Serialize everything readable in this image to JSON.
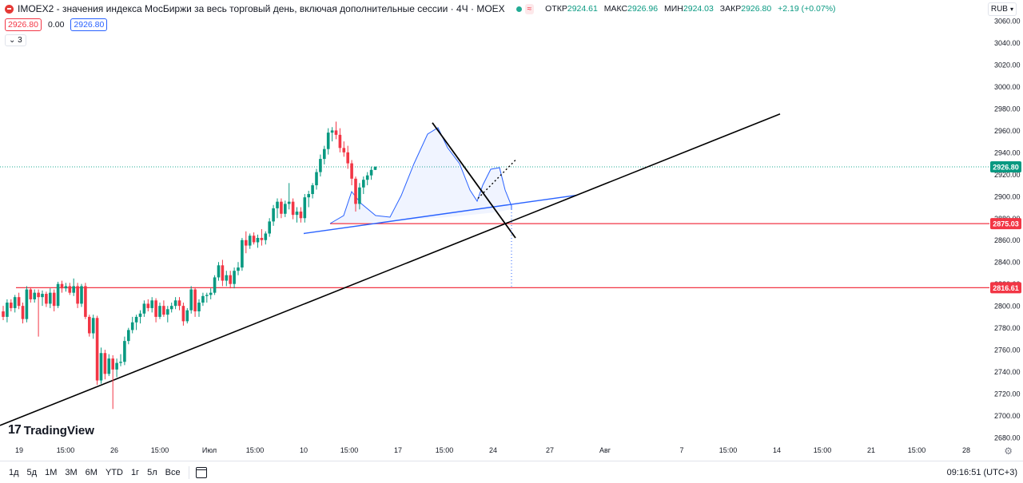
{
  "legend": {
    "title": "IMOEX2 - значения индекса МосБиржи за весь торговый день, включая дополнительные сессии · 4Ч · MOEX",
    "open_label": "ОТКР",
    "open": "2924.61",
    "high_label": "МАКС",
    "high": "2926.96",
    "low_label": "МИН",
    "low": "2924.03",
    "close_label": "ЗАКР",
    "close": "2926.80",
    "change": "+2.19 (+0.07%)",
    "status_mark": "≈"
  },
  "price_row": {
    "sell": "2926.80",
    "spread": "0.00",
    "buy": "2926.80"
  },
  "indicators_toggle": "3",
  "currency": "RUB",
  "brand": "TradingView",
  "bottom": {
    "ranges": [
      "1д",
      "5д",
      "1М",
      "3М",
      "6М",
      "YTD",
      "1г",
      "5л",
      "Все"
    ],
    "clock": "09:16:51 (UTC+3)"
  },
  "colors": {
    "up": "#089981",
    "down": "#f23645",
    "level": "#f23645",
    "trend": "#000000",
    "pattern": "#2962ff"
  },
  "chart_data": {
    "type": "candlestick",
    "y_ticks": [
      2680,
      2700,
      2720,
      2740,
      2760,
      2780,
      2800,
      2820,
      2840,
      2860,
      2880,
      2900,
      2920,
      2940,
      2960,
      2980,
      3000,
      3020,
      3040,
      3060
    ],
    "ylim": [
      2674,
      3065
    ],
    "x_ticks": [
      "19",
      "15:00",
      "26",
      "15:00",
      "Июл",
      "15:00",
      "10",
      "15:00",
      "17",
      "15:00",
      "24",
      "27",
      "Авг",
      "7",
      "15:00",
      "14",
      "15:00",
      "21",
      "15:00",
      "28"
    ],
    "last_price": 2926.8,
    "horizontal_levels": [
      2875.03,
      2816.61
    ],
    "candles_ohlc": [
      [
        2795,
        2800,
        2787,
        2790
      ],
      [
        2790,
        2806,
        2785,
        2803
      ],
      [
        2803,
        2806,
        2795,
        2798
      ],
      [
        2798,
        2810,
        2794,
        2808
      ],
      [
        2808,
        2812,
        2797,
        2800
      ],
      [
        2800,
        2803,
        2784,
        2788
      ],
      [
        2788,
        2818,
        2785,
        2815
      ],
      [
        2815,
        2817,
        2803,
        2806
      ],
      [
        2806,
        2815,
        2803,
        2812
      ],
      [
        2812,
        2815,
        2772,
        2808
      ],
      [
        2808,
        2814,
        2800,
        2811
      ],
      [
        2811,
        2813,
        2799,
        2802
      ],
      [
        2802,
        2816,
        2798,
        2812
      ],
      [
        2812,
        2815,
        2795,
        2800
      ],
      [
        2800,
        2822,
        2798,
        2820
      ],
      [
        2820,
        2823,
        2812,
        2816
      ],
      [
        2816,
        2821,
        2813,
        2818
      ],
      [
        2818,
        2821,
        2810,
        2812
      ],
      [
        2812,
        2825,
        2809,
        2818
      ],
      [
        2818,
        2821,
        2798,
        2802
      ],
      [
        2802,
        2820,
        2799,
        2818
      ],
      [
        2818,
        2821,
        2788,
        2790
      ],
      [
        2790,
        2792,
        2772,
        2775
      ],
      [
        2775,
        2792,
        2770,
        2789
      ],
      [
        2789,
        2791,
        2728,
        2732
      ],
      [
        2732,
        2762,
        2729,
        2757
      ],
      [
        2757,
        2760,
        2733,
        2738
      ],
      [
        2738,
        2756,
        2736,
        2752
      ],
      [
        2752,
        2755,
        2706,
        2742
      ],
      [
        2742,
        2752,
        2735,
        2748
      ],
      [
        2748,
        2756,
        2745,
        2749
      ],
      [
        2749,
        2772,
        2746,
        2768
      ],
      [
        2768,
        2780,
        2765,
        2778
      ],
      [
        2778,
        2790,
        2775,
        2785
      ],
      [
        2785,
        2792,
        2778,
        2790
      ],
      [
        2790,
        2796,
        2784,
        2793
      ],
      [
        2793,
        2805,
        2790,
        2802
      ],
      [
        2802,
        2806,
        2795,
        2798
      ],
      [
        2798,
        2808,
        2794,
        2805
      ],
      [
        2805,
        2807,
        2785,
        2790
      ],
      [
        2790,
        2803,
        2788,
        2800
      ],
      [
        2800,
        2805,
        2790,
        2792
      ],
      [
        2792,
        2800,
        2785,
        2797
      ],
      [
        2797,
        2803,
        2794,
        2800
      ],
      [
        2800,
        2808,
        2797,
        2805
      ],
      [
        2805,
        2808,
        2796,
        2800
      ],
      [
        2800,
        2803,
        2782,
        2786
      ],
      [
        2786,
        2798,
        2784,
        2796
      ],
      [
        2796,
        2818,
        2793,
        2815
      ],
      [
        2815,
        2817,
        2790,
        2795
      ],
      [
        2795,
        2806,
        2790,
        2803
      ],
      [
        2803,
        2812,
        2800,
        2809
      ],
      [
        2809,
        2812,
        2803,
        2810
      ],
      [
        2810,
        2816,
        2806,
        2812
      ],
      [
        2812,
        2828,
        2810,
        2826
      ],
      [
        2826,
        2840,
        2823,
        2837
      ],
      [
        2837,
        2842,
        2818,
        2823
      ],
      [
        2823,
        2832,
        2818,
        2828
      ],
      [
        2828,
        2832,
        2816,
        2820
      ],
      [
        2820,
        2835,
        2816,
        2832
      ],
      [
        2832,
        2840,
        2828,
        2835
      ],
      [
        2835,
        2862,
        2832,
        2860
      ],
      [
        2860,
        2868,
        2848,
        2855
      ],
      [
        2855,
        2866,
        2852,
        2864
      ],
      [
        2864,
        2867,
        2856,
        2858
      ],
      [
        2858,
        2865,
        2853,
        2862
      ],
      [
        2862,
        2870,
        2855,
        2860
      ],
      [
        2860,
        2868,
        2856,
        2866
      ],
      [
        2866,
        2880,
        2863,
        2877
      ],
      [
        2877,
        2892,
        2873,
        2889
      ],
      [
        2889,
        2898,
        2880,
        2895
      ],
      [
        2895,
        2898,
        2880,
        2884
      ],
      [
        2884,
        2896,
        2881,
        2893
      ],
      [
        2893,
        2912,
        2888,
        2895
      ],
      [
        2895,
        2898,
        2879,
        2883
      ],
      [
        2883,
        2890,
        2876,
        2886
      ],
      [
        2886,
        2890,
        2876,
        2880
      ],
      [
        2880,
        2902,
        2876,
        2899
      ],
      [
        2899,
        2905,
        2890,
        2902
      ],
      [
        2902,
        2912,
        2898,
        2910
      ],
      [
        2910,
        2925,
        2906,
        2922
      ],
      [
        2922,
        2938,
        2918,
        2934
      ],
      [
        2934,
        2946,
        2929,
        2943
      ],
      [
        2943,
        2962,
        2938,
        2958
      ],
      [
        2958,
        2963,
        2950,
        2960
      ],
      [
        2960,
        2968,
        2952,
        2956
      ],
      [
        2956,
        2962,
        2940,
        2944
      ],
      [
        2944,
        2950,
        2936,
        2940
      ],
      [
        2940,
        2946,
        2925,
        2930
      ],
      [
        2930,
        2933,
        2910,
        2916
      ],
      [
        2916,
        2918,
        2886,
        2893
      ],
      [
        2893,
        2912,
        2888,
        2908
      ],
      [
        2908,
        2918,
        2902,
        2915
      ],
      [
        2915,
        2922,
        2910,
        2919
      ],
      [
        2919,
        2927,
        2915,
        2924
      ],
      [
        2924,
        2927,
        2924,
        2927
      ]
    ]
  }
}
